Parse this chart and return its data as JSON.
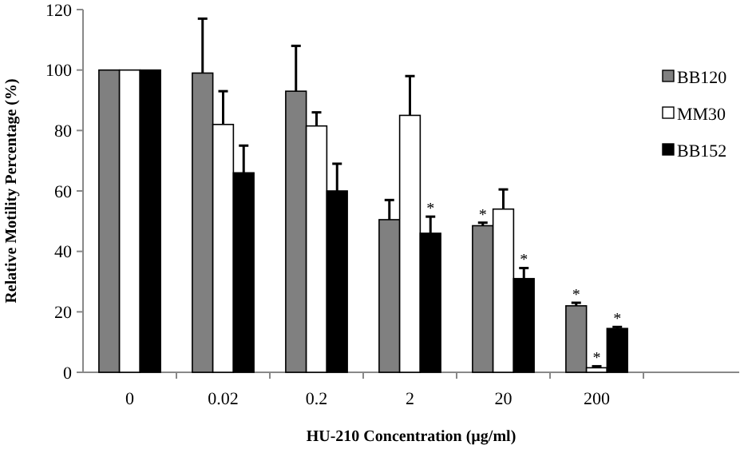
{
  "chart_data": {
    "type": "bar",
    "xlabel": "HU-210 Concentration (µg/ml)",
    "ylabel": "Relative Motility Percentage (%)",
    "categories": [
      "0",
      "0.02",
      "0.2",
      "2",
      "20",
      "200"
    ],
    "series": [
      {
        "name": "BB120",
        "color": "#808080",
        "values": [
          100,
          99,
          93,
          50.5,
          48.5,
          22
        ],
        "value_labels": [
          null,
          null,
          null,
          null,
          "*",
          "*"
        ],
        "errors": [
          null,
          [
            99,
            117
          ],
          [
            93,
            108
          ],
          [
            50.5,
            57
          ],
          [
            48.5,
            49.5
          ],
          [
            22,
            23
          ]
        ]
      },
      {
        "name": "MM30",
        "color": "#ffffff",
        "values": [
          100,
          82,
          81.5,
          85,
          54,
          1.5
        ],
        "value_labels": [
          null,
          null,
          null,
          null,
          null,
          "*"
        ],
        "errors": [
          null,
          [
            82,
            93
          ],
          [
            81.5,
            86
          ],
          [
            85,
            98
          ],
          [
            54,
            60.5
          ],
          [
            1.5,
            2
          ]
        ]
      },
      {
        "name": "BB152",
        "color": "#000000",
        "values": [
          100,
          66,
          60,
          46,
          31,
          14.5
        ],
        "value_labels": [
          null,
          null,
          null,
          "*",
          "*",
          "*"
        ],
        "errors": [
          null,
          [
            66,
            75
          ],
          [
            60,
            69
          ],
          [
            46,
            51.5
          ],
          [
            31,
            34.5
          ],
          [
            14.5,
            15
          ]
        ]
      }
    ],
    "ylim": [
      0,
      120
    ],
    "yticks": [
      0,
      20,
      40,
      60,
      80,
      100,
      120
    ],
    "grid": false,
    "legend": "right"
  }
}
